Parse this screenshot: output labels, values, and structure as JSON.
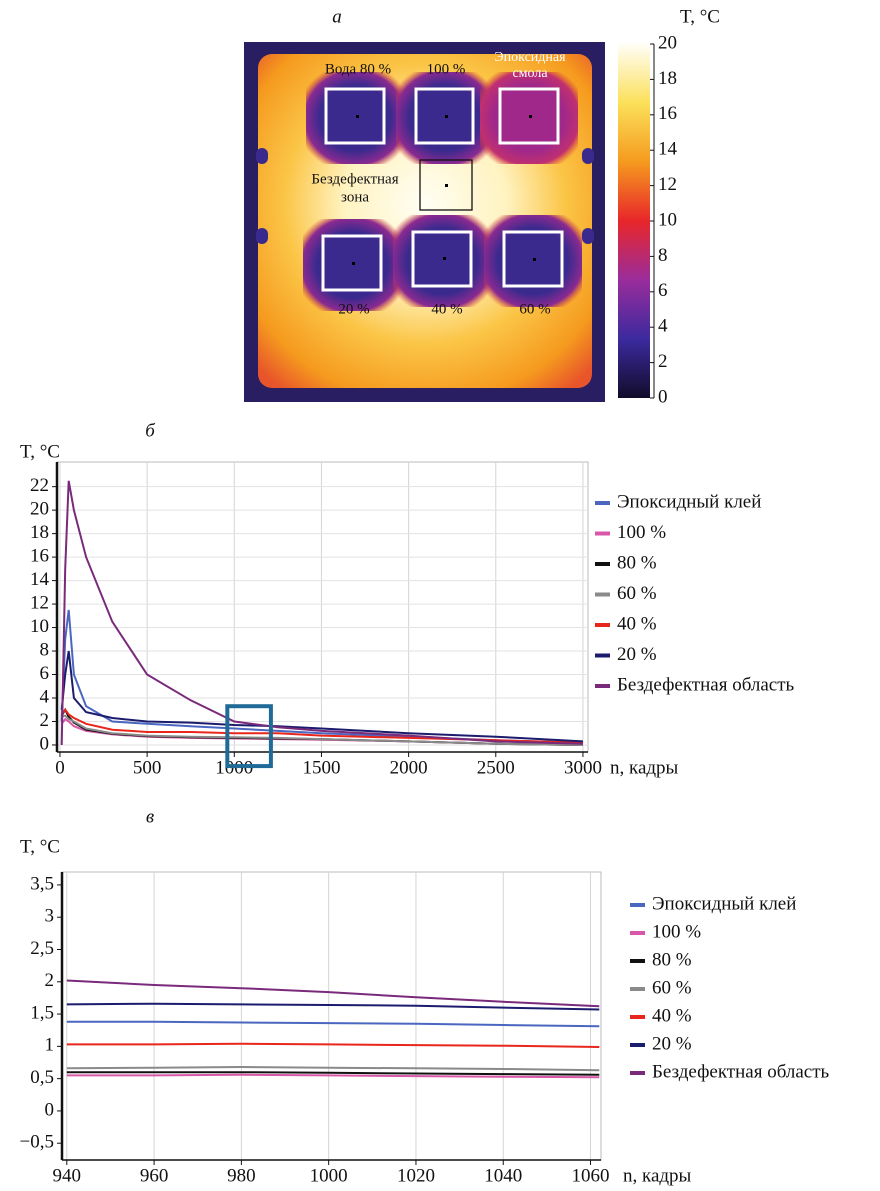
{
  "chart_data": [
    {
      "type": "thermal_image",
      "title": "а",
      "colorbar_label": "T, °C",
      "clim": [
        0,
        20
      ],
      "cticks": [
        0,
        2,
        4,
        6,
        8,
        10,
        12,
        14,
        16,
        18,
        20
      ],
      "colormap": [
        "#120c2a",
        "#3b2a9e",
        "#9a2c9c",
        "#e8262a",
        "#f59a1e",
        "#fbe05a",
        "#fffef6"
      ],
      "labels": [
        [
          "Вода 80 %"
        ],
        [
          "100 %"
        ],
        [
          "Эпоксидная",
          "смола"
        ],
        [
          "Бездефектная",
          "зона"
        ],
        [
          "20 %"
        ],
        [
          "40 %"
        ],
        [
          "60 %"
        ]
      ]
    },
    {
      "type": "line",
      "title": "б",
      "ylabel": "T, °C",
      "xlabel": "n, кадры",
      "x": [
        10,
        30,
        50,
        80,
        150,
        300,
        500,
        750,
        1000,
        1250,
        1500,
        2000,
        2500,
        3000
      ],
      "series": [
        {
          "name": "Эпоксидный клей",
          "color": "#4a66c0",
          "values": [
            2,
            9,
            11.5,
            6,
            3.3,
            2.0,
            1.8,
            1.6,
            1.4,
            1.2,
            1.0,
            0.7,
            0.4,
            0.2
          ]
        },
        {
          "name": "100 %",
          "color": "#d957a8",
          "values": [
            1.8,
            2.2,
            2.0,
            1.6,
            1.2,
            0.9,
            0.7,
            0.6,
            0.55,
            0.5,
            0.45,
            0.3,
            0.1,
            0.0
          ]
        },
        {
          "name": "80 %",
          "color": "#111111",
          "values": [
            2.5,
            3.0,
            2.4,
            1.9,
            1.3,
            0.95,
            0.75,
            0.65,
            0.6,
            0.55,
            0.5,
            0.3,
            0.1,
            0.0
          ]
        },
        {
          "name": "60 %",
          "color": "#8a8a8a",
          "values": [
            2.4,
            2.5,
            2.2,
            2.0,
            1.4,
            1.0,
            0.8,
            0.7,
            0.65,
            0.6,
            0.5,
            0.3,
            0.1,
            0.0
          ]
        },
        {
          "name": "40 %",
          "color": "#e8261c",
          "values": [
            2.6,
            3.0,
            2.6,
            2.3,
            1.8,
            1.3,
            1.1,
            1.1,
            1.0,
            1.0,
            0.8,
            0.6,
            0.4,
            0.2
          ]
        },
        {
          "name": "20 %",
          "color": "#1c1c6e",
          "values": [
            3,
            6,
            8,
            4,
            2.8,
            2.3,
            2.0,
            1.9,
            1.7,
            1.6,
            1.4,
            1.0,
            0.7,
            0.3
          ]
        },
        {
          "name": "Бездефектная область",
          "color": "#7a2a7a",
          "values": [
            0,
            15,
            22.5,
            20,
            16,
            10.5,
            6,
            3.8,
            2,
            1.5,
            1.2,
            0.8,
            0.3,
            0.1
          ]
        }
      ],
      "xlim": [
        -17,
        3029
      ],
      "ylim": [
        -0.6,
        24.1
      ],
      "xticks": [
        0,
        500,
        1000,
        1500,
        2000,
        2500,
        3000
      ],
      "yticks": [
        0,
        2,
        4,
        6,
        8,
        10,
        12,
        14,
        16,
        18,
        20,
        22
      ],
      "grid": "both",
      "highlight": {
        "x": [
          960,
          1210
        ],
        "y": [
          -1.8,
          3.3
        ],
        "color": "#1f6a96"
      }
    },
    {
      "type": "line",
      "title": "в",
      "ylabel": "T, °C",
      "xlabel": "n, кадры",
      "x": [
        940,
        960,
        980,
        1000,
        1020,
        1040,
        1062
      ],
      "series": [
        {
          "name": "Эпоксидный клей",
          "color": "#4a66c0",
          "values": [
            1.38,
            1.38,
            1.37,
            1.36,
            1.35,
            1.33,
            1.31
          ]
        },
        {
          "name": "100 %",
          "color": "#d957a8",
          "values": [
            0.55,
            0.55,
            0.56,
            0.55,
            0.54,
            0.53,
            0.52
          ]
        },
        {
          "name": "80 %",
          "color": "#111111",
          "values": [
            0.6,
            0.6,
            0.6,
            0.59,
            0.58,
            0.57,
            0.56
          ]
        },
        {
          "name": "60 %",
          "color": "#8a8a8a",
          "values": [
            0.66,
            0.67,
            0.68,
            0.67,
            0.66,
            0.65,
            0.63
          ]
        },
        {
          "name": "40 %",
          "color": "#e8261c",
          "values": [
            1.03,
            1.03,
            1.04,
            1.03,
            1.02,
            1.01,
            0.99
          ]
        },
        {
          "name": "20 %",
          "color": "#1c1c6e",
          "values": [
            1.65,
            1.66,
            1.65,
            1.64,
            1.63,
            1.6,
            1.57
          ]
        },
        {
          "name": "Бездефектная область",
          "color": "#7a2a7a",
          "values": [
            2.02,
            1.95,
            1.9,
            1.84,
            1.76,
            1.69,
            1.62
          ]
        }
      ],
      "xlim": [
        938.9,
        1062.4
      ],
      "ylim": [
        -0.76,
        3.7
      ],
      "xticks": [
        940,
        960,
        980,
        1000,
        1020,
        1040,
        1060
      ],
      "yticks": [
        {
          "value": -0.5,
          "label": "−0,5"
        },
        0,
        {
          "value": 0.5,
          "label": "0,5"
        },
        1,
        {
          "value": 1.5,
          "label": "1,5"
        },
        2,
        {
          "value": 2.5,
          "label": "2,5"
        },
        3,
        {
          "value": 3.5,
          "label": "3,5"
        }
      ],
      "grid": "x"
    }
  ]
}
